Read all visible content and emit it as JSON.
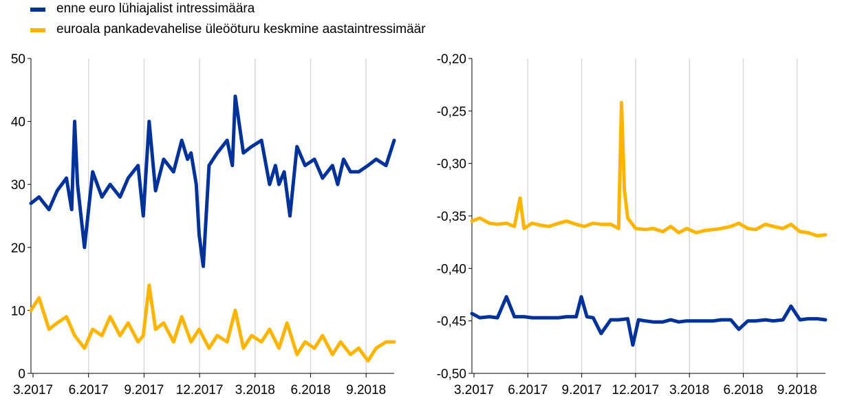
{
  "legend": [
    {
      "label": "enne euro lühiajalist intressimäära",
      "color": "#003299"
    },
    {
      "label": "euroala pankadevahelise üleööturu keskmine aastaintressimäär",
      "color": "#FFB400"
    }
  ],
  "chart_data": [
    {
      "type": "line",
      "title": "",
      "xlabel": "",
      "ylabel": "",
      "ylim": [
        0,
        50
      ],
      "y_ticks": [
        "0",
        "10",
        "20",
        "30",
        "40",
        "50"
      ],
      "x_ticks": [
        "3.2017",
        "6.2017",
        "9.2017",
        "12.2017",
        "3.2018",
        "6.2018",
        "9.2018"
      ],
      "x_range": [
        "2017-03-01",
        "2018-11-15"
      ],
      "grid": "vertical",
      "series": [
        {
          "color": "#003299",
          "x": [
            "2017-03-01",
            "2017-03-15",
            "2017-04-01",
            "2017-04-15",
            "2017-05-01",
            "2017-05-10",
            "2017-05-15",
            "2017-05-20",
            "2017-06-01",
            "2017-06-15",
            "2017-07-01",
            "2017-07-15",
            "2017-08-01",
            "2017-08-15",
            "2017-09-01",
            "2017-09-10",
            "2017-09-20",
            "2017-10-01",
            "2017-10-15",
            "2017-11-01",
            "2017-11-15",
            "2017-11-25",
            "2017-12-01",
            "2017-12-10",
            "2017-12-15",
            "2017-12-22",
            "2018-01-01",
            "2018-01-15",
            "2018-02-01",
            "2018-02-10",
            "2018-02-15",
            "2018-03-01",
            "2018-03-15",
            "2018-04-01",
            "2018-04-15",
            "2018-04-25",
            "2018-05-01",
            "2018-05-10",
            "2018-05-20",
            "2018-06-01",
            "2018-06-15",
            "2018-07-01",
            "2018-07-15",
            "2018-08-01",
            "2018-08-10",
            "2018-08-20",
            "2018-09-01",
            "2018-09-15",
            "2018-10-01",
            "2018-10-15",
            "2018-11-01",
            "2018-11-15"
          ],
          "values": [
            27,
            28,
            26,
            29,
            31,
            26,
            40,
            30,
            20,
            32,
            28,
            30,
            28,
            31,
            33,
            25,
            40,
            29,
            34,
            32,
            37,
            34,
            35,
            30,
            22,
            17,
            33,
            35,
            37,
            33,
            44,
            35,
            36,
            37,
            30,
            33,
            30,
            32,
            25,
            36,
            33,
            34,
            31,
            33,
            30,
            34,
            32,
            32,
            33,
            34,
            33,
            37
          ]
        },
        {
          "color": "#FFB400",
          "x": [
            "2017-03-01",
            "2017-03-15",
            "2017-04-01",
            "2017-04-15",
            "2017-05-01",
            "2017-05-15",
            "2017-06-01",
            "2017-06-15",
            "2017-07-01",
            "2017-07-15",
            "2017-08-01",
            "2017-08-15",
            "2017-09-01",
            "2017-09-10",
            "2017-09-20",
            "2017-10-01",
            "2017-10-15",
            "2017-11-01",
            "2017-11-15",
            "2017-12-01",
            "2017-12-15",
            "2018-01-01",
            "2018-01-15",
            "2018-02-01",
            "2018-02-15",
            "2018-03-01",
            "2018-03-15",
            "2018-04-01",
            "2018-04-15",
            "2018-05-01",
            "2018-05-15",
            "2018-06-01",
            "2018-06-15",
            "2018-07-01",
            "2018-07-15",
            "2018-08-01",
            "2018-08-15",
            "2018-09-01",
            "2018-09-15",
            "2018-10-01",
            "2018-10-15",
            "2018-11-01",
            "2018-11-15"
          ],
          "values": [
            10,
            12,
            7,
            8,
            9,
            6,
            4,
            7,
            6,
            9,
            6,
            8,
            5,
            6,
            14,
            7,
            8,
            5,
            9,
            5,
            7,
            4,
            6,
            5,
            10,
            4,
            6,
            5,
            7,
            4,
            8,
            3,
            5,
            4,
            6,
            3,
            5,
            3,
            4,
            2,
            4,
            5,
            5
          ]
        }
      ]
    },
    {
      "type": "line",
      "title": "",
      "xlabel": "",
      "ylabel": "",
      "ylim": [
        -0.5,
        -0.2
      ],
      "y_ticks": [
        "-0,50",
        "-0,45",
        "-0,40",
        "-0,35",
        "-0,30",
        "-0,25",
        "-0,20"
      ],
      "x_ticks": [
        "3.2017",
        "6.2017",
        "9.2017",
        "12.2017",
        "3.2018",
        "6.2018",
        "9.2018"
      ],
      "x_range": [
        "2017-03-01",
        "2018-11-15"
      ],
      "grid": "vertical",
      "series": [
        {
          "color": "#003299",
          "x": [
            "2017-03-01",
            "2017-03-15",
            "2017-04-01",
            "2017-04-15",
            "2017-05-01",
            "2017-05-15",
            "2017-06-01",
            "2017-06-15",
            "2017-07-01",
            "2017-07-15",
            "2017-08-01",
            "2017-08-15",
            "2017-09-01",
            "2017-09-10",
            "2017-09-20",
            "2017-10-01",
            "2017-10-15",
            "2017-11-01",
            "2017-11-15",
            "2017-12-01",
            "2017-12-10",
            "2017-12-20",
            "2018-01-01",
            "2018-01-15",
            "2018-02-01",
            "2018-02-15",
            "2018-03-01",
            "2018-03-15",
            "2018-04-01",
            "2018-04-15",
            "2018-05-01",
            "2018-05-15",
            "2018-06-01",
            "2018-06-15",
            "2018-07-01",
            "2018-07-15",
            "2018-08-01",
            "2018-08-15",
            "2018-09-01",
            "2018-09-15",
            "2018-10-01",
            "2018-10-15",
            "2018-11-01",
            "2018-11-15"
          ],
          "values": [
            -0.443,
            -0.447,
            -0.446,
            -0.447,
            -0.427,
            -0.446,
            -0.446,
            -0.447,
            -0.447,
            -0.447,
            -0.447,
            -0.446,
            -0.446,
            -0.427,
            -0.446,
            -0.447,
            -0.462,
            -0.449,
            -0.449,
            -0.448,
            -0.473,
            -0.449,
            -0.45,
            -0.451,
            -0.451,
            -0.449,
            -0.451,
            -0.45,
            -0.45,
            -0.45,
            -0.45,
            -0.449,
            -0.449,
            -0.458,
            -0.45,
            -0.45,
            -0.449,
            -0.45,
            -0.449,
            -0.436,
            -0.449,
            -0.448,
            -0.448,
            -0.449
          ]
        },
        {
          "color": "#FFB400",
          "x": [
            "2017-03-01",
            "2017-03-15",
            "2017-04-01",
            "2017-04-15",
            "2017-05-01",
            "2017-05-15",
            "2017-05-25",
            "2017-06-01",
            "2017-06-15",
            "2017-07-01",
            "2017-07-15",
            "2017-08-01",
            "2017-08-15",
            "2017-09-01",
            "2017-09-15",
            "2017-10-01",
            "2017-10-15",
            "2017-11-01",
            "2017-11-15",
            "2017-11-20",
            "2017-11-25",
            "2017-12-01",
            "2017-12-15",
            "2018-01-01",
            "2018-01-15",
            "2018-02-01",
            "2018-02-15",
            "2018-03-01",
            "2018-03-15",
            "2018-04-01",
            "2018-04-15",
            "2018-05-01",
            "2018-05-15",
            "2018-06-01",
            "2018-06-15",
            "2018-07-01",
            "2018-07-15",
            "2018-08-01",
            "2018-08-15",
            "2018-09-01",
            "2018-09-15",
            "2018-10-01",
            "2018-10-15",
            "2018-11-01",
            "2018-11-15"
          ],
          "values": [
            -0.355,
            -0.352,
            -0.357,
            -0.358,
            -0.357,
            -0.36,
            -0.333,
            -0.362,
            -0.357,
            -0.359,
            -0.36,
            -0.357,
            -0.355,
            -0.358,
            -0.36,
            -0.357,
            -0.358,
            -0.358,
            -0.362,
            -0.242,
            -0.325,
            -0.352,
            -0.362,
            -0.363,
            -0.362,
            -0.365,
            -0.36,
            -0.366,
            -0.362,
            -0.366,
            -0.364,
            -0.363,
            -0.362,
            -0.36,
            -0.357,
            -0.362,
            -0.363,
            -0.358,
            -0.36,
            -0.362,
            -0.358,
            -0.365,
            -0.366,
            -0.369,
            -0.368
          ]
        }
      ]
    }
  ]
}
